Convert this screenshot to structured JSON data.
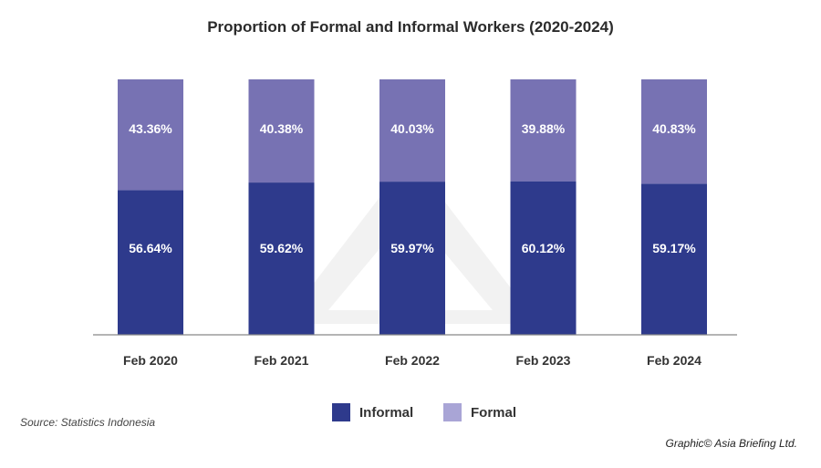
{
  "chart_data": {
    "type": "bar",
    "stacked": true,
    "title": "Proportion of Formal and Informal Workers (2020-2024)",
    "xlabel": "",
    "ylabel": "",
    "ylim": [
      0,
      100
    ],
    "grid": false,
    "legend_position": "bottom-center",
    "categories": [
      "Feb 2020",
      "Feb 2021",
      "Feb 2022",
      "Feb 2023",
      "Feb 2024"
    ],
    "series": [
      {
        "name": "Informal",
        "values": [
          56.64,
          59.62,
          59.97,
          60.12,
          59.17
        ],
        "labels": [
          "56.64%",
          "59.62%",
          "59.97%",
          "60.12%",
          "59.17%"
        ],
        "color": "#2e3a8c"
      },
      {
        "name": "Formal",
        "values": [
          43.36,
          40.38,
          40.03,
          39.88,
          40.83
        ],
        "labels": [
          "43.36%",
          "40.38%",
          "40.03%",
          "39.88%",
          "40.83%"
        ],
        "color": "#7772b3"
      }
    ]
  },
  "legend": {
    "informal_label": "Informal",
    "informal_color": "#2e3a8c",
    "formal_label": "Formal",
    "formal_color": "#a9a5d6"
  },
  "source": "Source: Statistics Indonesia",
  "credit": "Graphic© Asia Briefing Ltd."
}
